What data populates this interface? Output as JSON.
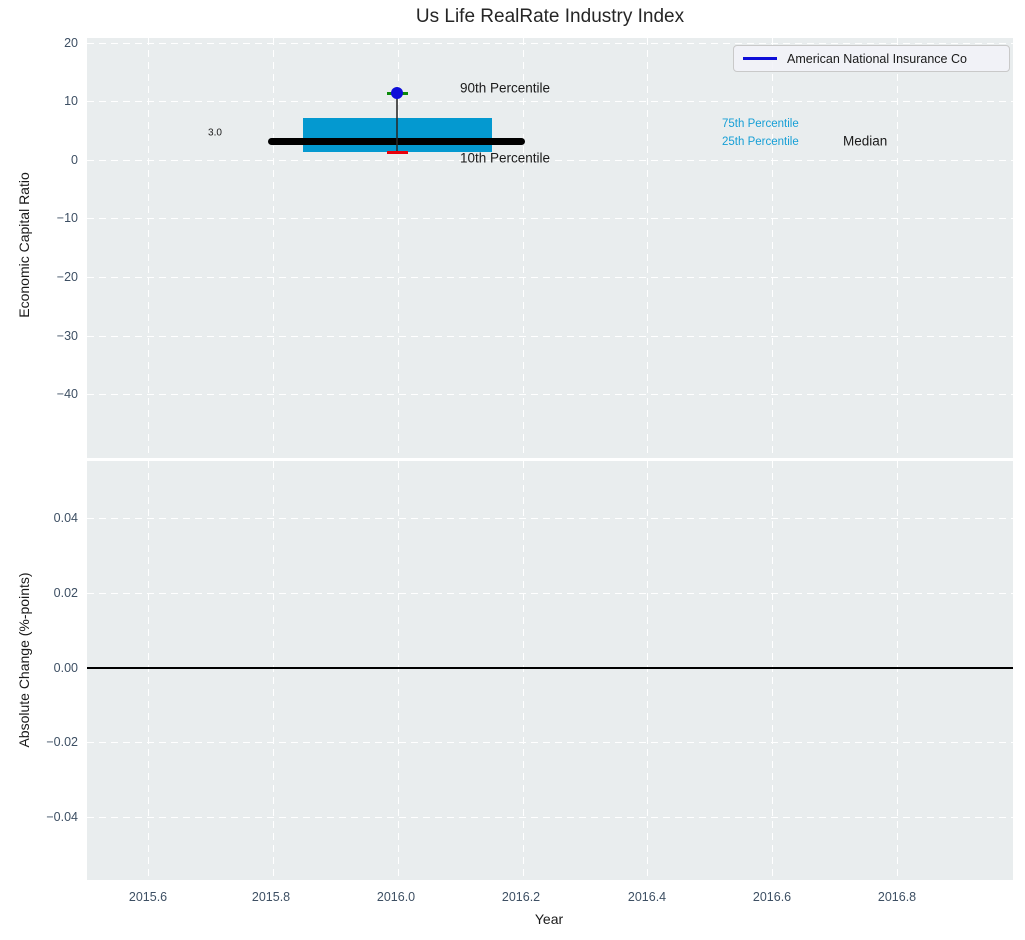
{
  "title": "Us Life RealRate Industry Index",
  "legend": {
    "label": "American National Insurance Co"
  },
  "colors": {
    "accent_blue": "#0e0ed8",
    "box_fill": "#0499d0",
    "percentile_text": "#169fd6",
    "p90_cap_green": "#0b8a0b",
    "p10_cap_red": "#e8000b",
    "median_line": "#000000",
    "plot_bg": "#e9edee",
    "tick_text": "#3d4f63"
  },
  "top_chart": {
    "ylabel": "Economic Capital Ratio",
    "yticks": [
      "20",
      "10",
      "0",
      "−10",
      "−20",
      "−30",
      "−40"
    ],
    "annotations": {
      "median_value": "3.0",
      "p90_label": "90th Percentile",
      "p10_label": "10th Percentile",
      "p75_label": "75th Percentile",
      "p25_label": "25th Percentile",
      "median_label": "Median"
    }
  },
  "bottom_chart": {
    "ylabel": "Absolute Change (%-points)",
    "yticks": [
      "0.04",
      "0.02",
      "0.00",
      "−0.02",
      "−0.04"
    ]
  },
  "xaxis": {
    "label": "Year",
    "ticks": [
      "2015.6",
      "2015.8",
      "2016.0",
      "2016.2",
      "2016.4",
      "2016.6",
      "2016.8"
    ]
  },
  "chart_data": [
    {
      "type": "boxplot",
      "title": "Us Life RealRate Industry Index",
      "xlabel": "Year",
      "ylabel": "Economic Capital Ratio",
      "xlim": [
        2015.5,
        2017.0
      ],
      "ylim": [
        -51,
        21
      ],
      "yticks": [
        20,
        10,
        0,
        -10,
        -20,
        -30,
        -40
      ],
      "xticks": [
        2015.6,
        2015.8,
        2016.0,
        2016.2,
        2016.4,
        2016.6,
        2016.8
      ],
      "grid": "white dashed gridlines on light gray background",
      "legend_position": "upper right",
      "legend_entries": [
        "American National Insurance Co"
      ],
      "boxes": [
        {
          "x": 2016.0,
          "p10": 1.0,
          "p25": 1.3,
          "median": 3.0,
          "p75": 6.8,
          "p90": 11.0,
          "company_value": 11.0,
          "median_text_label": "3.0",
          "annotations": [
            "90th Percentile",
            "10th Percentile",
            "75th Percentile",
            "25th Percentile",
            "Median"
          ]
        }
      ]
    },
    {
      "type": "line",
      "xlabel": "Year",
      "ylabel": "Absolute Change (%-points)",
      "xlim": [
        2015.5,
        2017.0
      ],
      "ylim": [
        -0.055,
        0.055
      ],
      "yticks": [
        0.04,
        0.02,
        0.0,
        -0.02,
        -0.04
      ],
      "series": [
        {
          "name": "zero-baseline",
          "y": 0.0,
          "style": "solid black horizontal line",
          "points": []
        }
      ]
    }
  ]
}
